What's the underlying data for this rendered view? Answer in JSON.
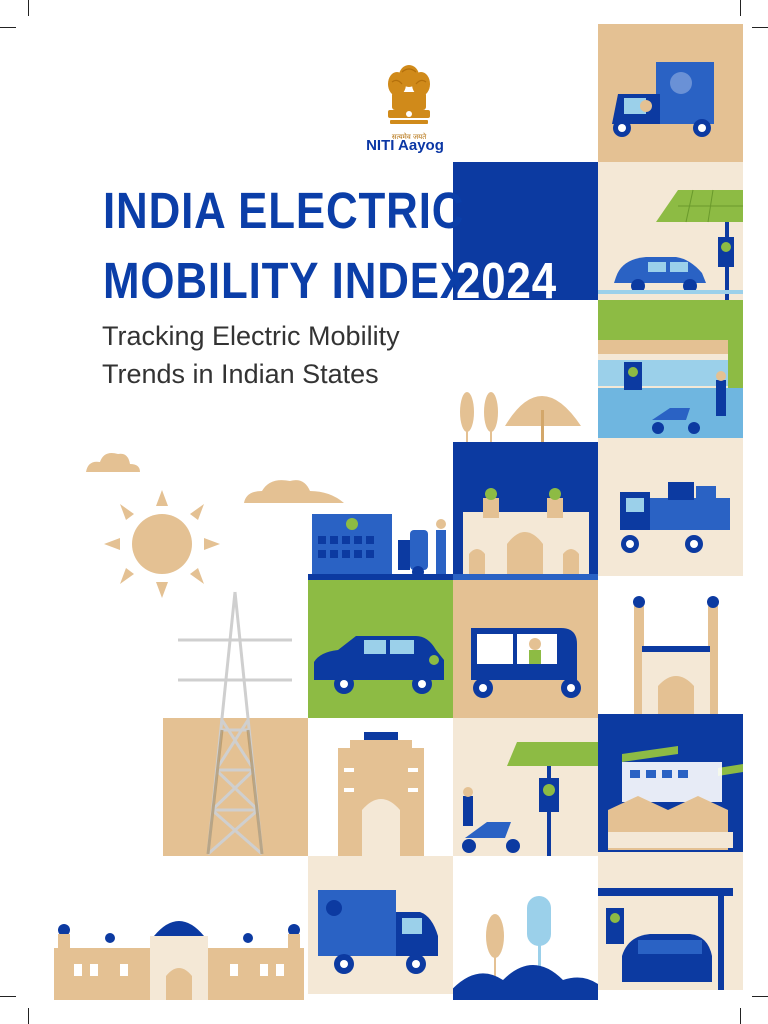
{
  "organization": {
    "emblem_motto": "सत्यमेव जयते",
    "name": "NITI Aayog"
  },
  "cover": {
    "title_line1": "INDIA ELECTRIC",
    "title_line2": "MOBILITY INDEX",
    "year": "2024",
    "subtitle_line1": "Tracking Electric Mobility",
    "subtitle_line2": "Trends in Indian States"
  },
  "colors": {
    "brand_blue": "#0c3aa1",
    "tan": "#e4c193",
    "cream": "#f4e8d6",
    "green": "#8dbb44"
  },
  "illustrations": [
    "electric-cargo-three-wheeler",
    "solar-charging-station-car",
    "shop-charger-scooter",
    "trees",
    "clouds",
    "sun",
    "charging-station-scooter",
    "gateway-of-india",
    "electric-truck",
    "transmission-tower",
    "electric-car",
    "electric-auto-rickshaw",
    "charminar",
    "india-gate",
    "solar-charger-scooter",
    "factory-buildings",
    "palace",
    "electric-van",
    "trees-bushes",
    "covered-charging-car"
  ]
}
